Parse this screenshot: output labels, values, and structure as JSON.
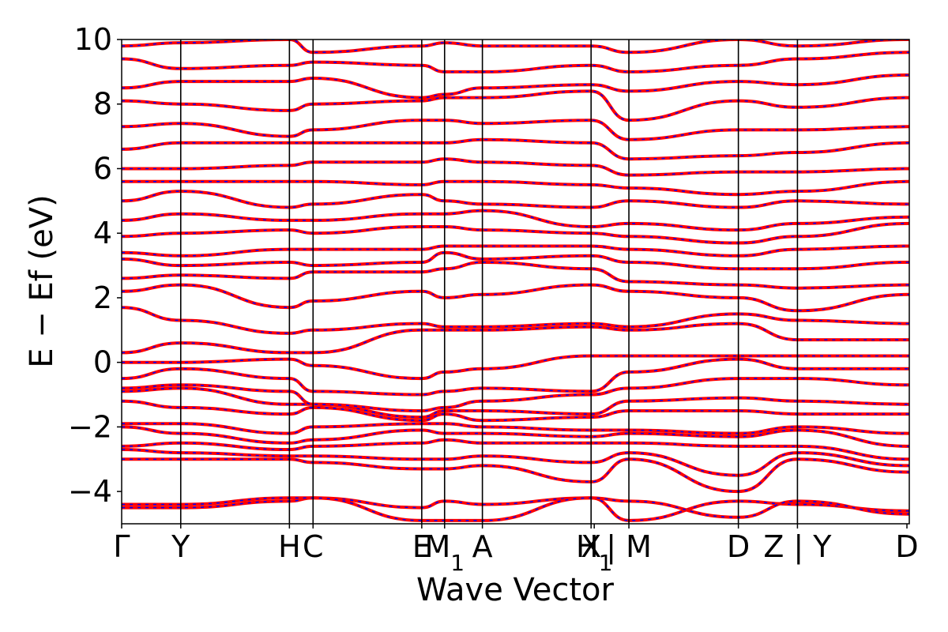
{
  "chart_data": {
    "type": "line",
    "xlabel": "Wave Vector",
    "ylabel": "E − Ef (eV)",
    "ylim": [
      -5,
      10
    ],
    "y_ticks": [
      "−4",
      "−2",
      "0",
      "2",
      "4",
      "6",
      "8",
      "10"
    ],
    "y_tick_values": [
      -4,
      -2,
      0,
      2,
      4,
      6,
      8,
      10
    ],
    "xlim": [
      0,
      1
    ],
    "k_ticks": [
      {
        "label": "Γ",
        "pos": 0.0
      },
      {
        "label": "Y",
        "pos": 0.075
      },
      {
        "label": "H",
        "pos": 0.213
      },
      {
        "label": "C",
        "pos": 0.243
      },
      {
        "label": "E",
        "pos": 0.381
      },
      {
        "label": "M1",
        "pos": 0.41
      },
      {
        "label": "A",
        "pos": 0.458
      },
      {
        "label": "X",
        "pos": 0.596
      },
      {
        "label": "H1",
        "pos": 0.6
      },
      {
        "label": "| M",
        "pos": 0.644
      },
      {
        "label": "D",
        "pos": 0.783
      },
      {
        "label": "Z | Y",
        "pos": 0.858
      },
      {
        "label": "D",
        "pos": 0.997
      }
    ],
    "k_lines": [
      0.075,
      0.213,
      0.243,
      0.381,
      0.41,
      0.458,
      0.596,
      0.644,
      0.783,
      0.858
    ],
    "k_nodes": [
      0.0,
      0.075,
      0.213,
      0.243,
      0.381,
      0.41,
      0.458,
      0.596,
      0.644,
      0.783,
      0.858,
      1.0
    ],
    "series": [
      {
        "color": "#ff0000",
        "style": "solid"
      },
      {
        "color": "#0000ff",
        "style": "dashed"
      }
    ],
    "bands": [
      [
        -4.5,
        -4.5,
        -4.3,
        -4.2,
        -4.5,
        -4.3,
        -4.4,
        -4.2,
        -4.9,
        -4.3,
        -4.4,
        -4.6
      ],
      [
        -4.4,
        -4.4,
        -4.2,
        -4.2,
        -4.9,
        -4.9,
        -4.9,
        -4.2,
        -4.3,
        -4.8,
        -4.3,
        -4.7
      ],
      [
        -3.0,
        -3.0,
        -3.0,
        -3.1,
        -3.3,
        -3.3,
        -3.2,
        -3.7,
        -3.0,
        -4.0,
        -3.0,
        -3.4
      ],
      [
        -2.7,
        -2.8,
        -2.9,
        -2.9,
        -3.0,
        -3.0,
        -2.9,
        -3.1,
        -2.8,
        -3.5,
        -2.8,
        -3.2
      ],
      [
        -2.6,
        -2.5,
        -2.7,
        -2.6,
        -2.5,
        -2.4,
        -2.5,
        -2.5,
        -2.5,
        -2.6,
        -2.6,
        -3.0
      ],
      [
        -2.0,
        -2.2,
        -2.5,
        -2.4,
        -2.1,
        -2.2,
        -2.2,
        -2.3,
        -2.2,
        -2.3,
        -2.1,
        -2.6
      ],
      [
        -1.9,
        -1.9,
        -2.2,
        -2.0,
        -1.9,
        -1.9,
        -2.0,
        -2.1,
        -2.1,
        -2.2,
        -2.0,
        -2.2
      ],
      [
        -1.2,
        -1.4,
        -1.6,
        -1.4,
        -1.8,
        -1.6,
        -1.8,
        -1.7,
        -1.5,
        -1.5,
        -1.6,
        -1.6
      ],
      [
        -0.9,
        -0.8,
        -1.3,
        -1.3,
        -1.7,
        -1.5,
        -1.5,
        -1.6,
        -1.2,
        -1.1,
        -1.2,
        -1.3
      ],
      [
        -0.8,
        -0.7,
        -0.9,
        -1.3,
        -1.5,
        -1.4,
        -1.2,
        -1.0,
        -0.8,
        -0.5,
        -0.5,
        -0.7
      ],
      [
        -0.5,
        -0.2,
        -0.5,
        -0.9,
        -1.0,
        -0.9,
        -0.8,
        -0.9,
        -0.3,
        0.1,
        -0.2,
        -0.2
      ],
      [
        0.0,
        0.0,
        0.1,
        -0.1,
        -0.5,
        -0.3,
        -0.2,
        0.2,
        0.2,
        0.2,
        0.2,
        0.2
      ],
      [
        0.3,
        0.6,
        0.3,
        0.3,
        1.0,
        1.0,
        1.0,
        1.1,
        1.0,
        1.2,
        0.7,
        0.7
      ],
      [
        1.7,
        1.3,
        0.9,
        1.0,
        1.2,
        1.1,
        1.1,
        1.2,
        1.1,
        1.5,
        1.3,
        1.2
      ],
      [
        2.2,
        2.4,
        1.7,
        1.9,
        2.2,
        2.0,
        2.1,
        2.4,
        2.2,
        2.0,
        1.6,
        2.1
      ],
      [
        2.6,
        2.7,
        2.6,
        2.8,
        2.8,
        2.9,
        3.1,
        2.9,
        2.5,
        2.4,
        2.3,
        2.4
      ],
      [
        3.2,
        3.0,
        3.1,
        3.0,
        3.1,
        3.4,
        3.2,
        3.3,
        3.1,
        2.9,
        2.9,
        3.1
      ],
      [
        3.4,
        3.3,
        3.5,
        3.5,
        3.5,
        3.6,
        3.6,
        3.6,
        3.5,
        3.3,
        3.5,
        3.6
      ],
      [
        3.9,
        4.0,
        4.1,
        4.0,
        4.2,
        4.2,
        4.1,
        4.0,
        3.9,
        3.7,
        3.9,
        4.3
      ],
      [
        4.4,
        4.6,
        4.4,
        4.4,
        4.6,
        4.6,
        4.7,
        4.2,
        4.3,
        4.1,
        4.3,
        4.5
      ],
      [
        5.0,
        5.3,
        4.8,
        4.9,
        5.2,
        5.0,
        4.9,
        4.8,
        5.0,
        4.8,
        5.0,
        4.9
      ],
      [
        5.6,
        5.6,
        5.6,
        5.6,
        5.5,
        5.6,
        5.6,
        5.5,
        5.4,
        5.2,
        5.3,
        5.6
      ],
      [
        6.0,
        6.0,
        6.1,
        6.2,
        6.2,
        6.3,
        6.2,
        6.1,
        5.8,
        5.9,
        5.9,
        6.0
      ],
      [
        6.6,
        6.8,
        6.8,
        6.8,
        6.8,
        6.8,
        6.9,
        6.8,
        6.3,
        6.4,
        6.5,
        6.8
      ],
      [
        7.3,
        7.4,
        7.0,
        7.2,
        7.5,
        7.5,
        7.4,
        7.5,
        6.9,
        7.2,
        7.2,
        7.3
      ],
      [
        8.1,
        8.0,
        7.8,
        8.0,
        8.1,
        8.2,
        8.2,
        8.4,
        7.5,
        8.1,
        7.9,
        8.2
      ],
      [
        8.5,
        8.7,
        8.7,
        8.8,
        8.2,
        8.3,
        8.5,
        8.6,
        8.4,
        8.7,
        8.6,
        8.9
      ],
      [
        9.4,
        9.1,
        9.2,
        9.3,
        9.2,
        9.0,
        9.0,
        9.2,
        9.0,
        9.2,
        9.4,
        9.6
      ],
      [
        9.8,
        9.9,
        10.0,
        9.6,
        9.8,
        9.9,
        9.8,
        9.8,
        9.6,
        10.0,
        9.8,
        10.0
      ]
    ]
  }
}
